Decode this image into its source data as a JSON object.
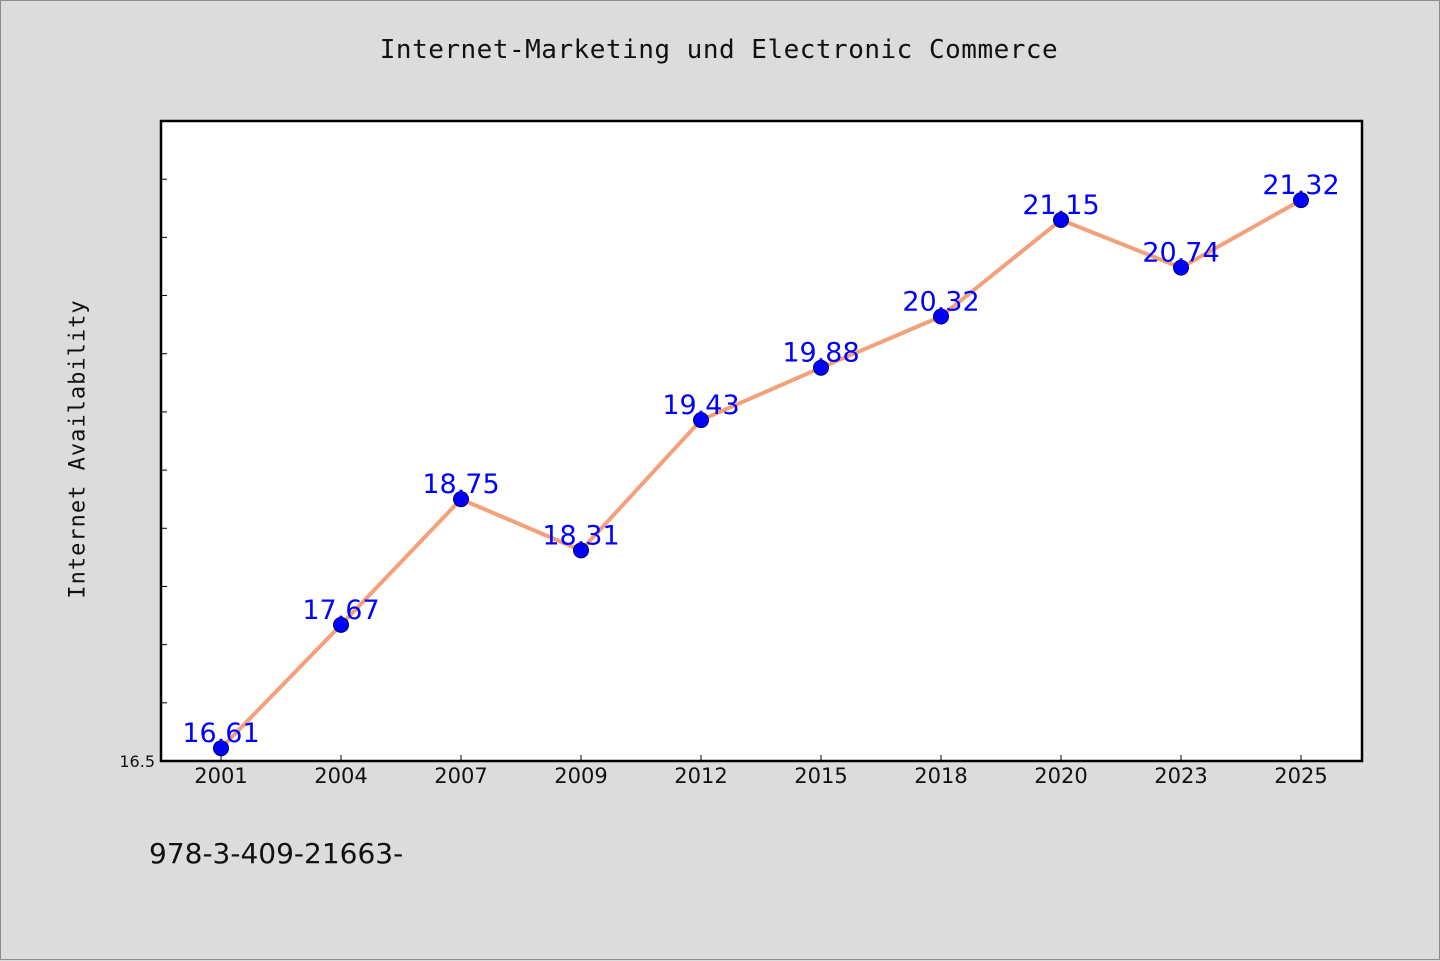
{
  "colors": {
    "background": "#dcdcdc",
    "plot_background": "#ffffff",
    "line": "#f4a07a",
    "marker": "#0000ff",
    "data_label": "#0000ff",
    "axis": "#000000"
  },
  "footer": {
    "text": "978-3-409-21663-"
  },
  "chart_data": {
    "type": "line",
    "title": "Internet-Marketing und Electronic Commerce",
    "xlabel": "",
    "ylabel": "Internet Availability",
    "categories": [
      "2001",
      "2004",
      "2007",
      "2009",
      "2012",
      "2015",
      "2018",
      "2020",
      "2023",
      "2025"
    ],
    "series": [
      {
        "values": [
          16.61,
          17.67,
          18.75,
          18.31,
          19.43,
          19.88,
          20.32,
          21.15,
          20.74,
          21.32
        ]
      }
    ],
    "data_labels": [
      "16.61",
      "17.67",
      "18.75",
      "18.31",
      "19.43",
      "19.88",
      "20.32",
      "21.15",
      "20.74",
      "21.32"
    ],
    "ylim": [
      16.5,
      22.0
    ],
    "yticks": [
      {
        "value": 16.5,
        "label": "16.5"
      }
    ],
    "y_minor_tick_step": 0.5,
    "grid": false,
    "legend": "none"
  }
}
